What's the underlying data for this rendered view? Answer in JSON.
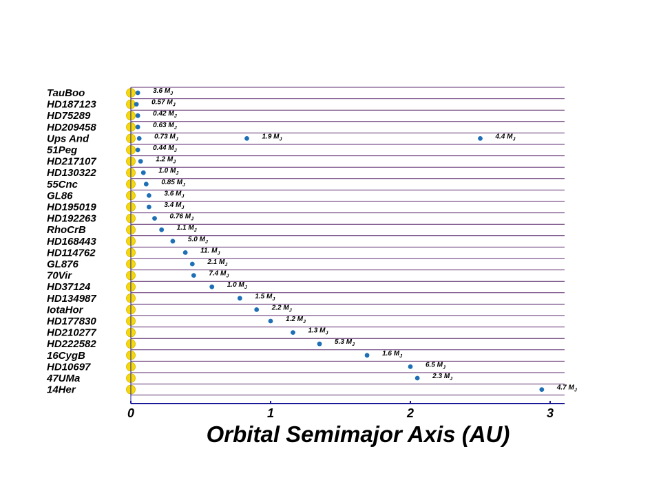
{
  "chart_data": {
    "type": "scatter",
    "title": "",
    "xlabel": "Orbital Semimajor Axis  (AU)",
    "ylabel": "",
    "xlim": [
      0,
      3.1
    ],
    "xticks": [
      "0",
      "1",
      "2",
      "3"
    ],
    "grid": "horizontal row lines",
    "colors": {
      "row_line": "#5b2a6e",
      "axis_line": "#1a1a99",
      "star": "#f5d90a",
      "star_outline": "#d4b000",
      "planet": "#1e6fb5"
    },
    "mass_unit": "M",
    "mass_unit_sub": "J",
    "stars": [
      {
        "name": "TauBoo",
        "planets": [
          {
            "a": 0.05,
            "mass": "3.6"
          }
        ]
      },
      {
        "name": "HD187123",
        "planets": [
          {
            "a": 0.04,
            "mass": "0.57"
          }
        ]
      },
      {
        "name": "HD75289",
        "planets": [
          {
            "a": 0.05,
            "mass": "0.42"
          }
        ]
      },
      {
        "name": "HD209458",
        "planets": [
          {
            "a": 0.05,
            "mass": "0.63"
          }
        ]
      },
      {
        "name": "Ups And",
        "planets": [
          {
            "a": 0.06,
            "mass": "0.73"
          },
          {
            "a": 0.83,
            "mass": "1.9"
          },
          {
            "a": 2.5,
            "mass": "4.4"
          }
        ]
      },
      {
        "name": "51Peg",
        "planets": [
          {
            "a": 0.05,
            "mass": "0.44"
          }
        ]
      },
      {
        "name": "HD217107",
        "planets": [
          {
            "a": 0.07,
            "mass": "1.2"
          }
        ]
      },
      {
        "name": "HD130322",
        "planets": [
          {
            "a": 0.09,
            "mass": "1.0"
          }
        ]
      },
      {
        "name": "55Cnc",
        "planets": [
          {
            "a": 0.11,
            "mass": "0.85"
          }
        ]
      },
      {
        "name": "GL86",
        "planets": [
          {
            "a": 0.13,
            "mass": "3.6"
          }
        ]
      },
      {
        "name": "HD195019",
        "planets": [
          {
            "a": 0.13,
            "mass": "3.4"
          }
        ]
      },
      {
        "name": "HD192263",
        "planets": [
          {
            "a": 0.17,
            "mass": "0.76"
          }
        ]
      },
      {
        "name": "RhoCrB",
        "planets": [
          {
            "a": 0.22,
            "mass": "1.1"
          }
        ]
      },
      {
        "name": "HD168443",
        "planets": [
          {
            "a": 0.3,
            "mass": "5.0"
          }
        ]
      },
      {
        "name": "HD114762",
        "planets": [
          {
            "a": 0.39,
            "mass": "11."
          }
        ]
      },
      {
        "name": "GL876",
        "planets": [
          {
            "a": 0.44,
            "mass": "2.1"
          }
        ]
      },
      {
        "name": "70Vir",
        "planets": [
          {
            "a": 0.45,
            "mass": "7.4"
          }
        ]
      },
      {
        "name": "HD37124",
        "planets": [
          {
            "a": 0.58,
            "mass": "1.0"
          }
        ]
      },
      {
        "name": "HD134987",
        "planets": [
          {
            "a": 0.78,
            "mass": "1.5"
          }
        ]
      },
      {
        "name": "IotaHor",
        "planets": [
          {
            "a": 0.9,
            "mass": "2.2"
          }
        ]
      },
      {
        "name": "HD177830",
        "planets": [
          {
            "a": 1.0,
            "mass": "1.2"
          }
        ]
      },
      {
        "name": "HD210277",
        "planets": [
          {
            "a": 1.16,
            "mass": "1.3"
          }
        ]
      },
      {
        "name": "HD222582",
        "planets": [
          {
            "a": 1.35,
            "mass": "5.3"
          }
        ]
      },
      {
        "name": "16CygB",
        "planets": [
          {
            "a": 1.69,
            "mass": "1.6"
          }
        ]
      },
      {
        "name": "HD10697",
        "planets": [
          {
            "a": 2.0,
            "mass": "6.5"
          }
        ]
      },
      {
        "name": "47UMa",
        "planets": [
          {
            "a": 2.05,
            "mass": "2.3"
          }
        ]
      },
      {
        "name": "14Her",
        "planets": [
          {
            "a": 2.94,
            "mass": "4.7"
          }
        ]
      }
    ]
  }
}
